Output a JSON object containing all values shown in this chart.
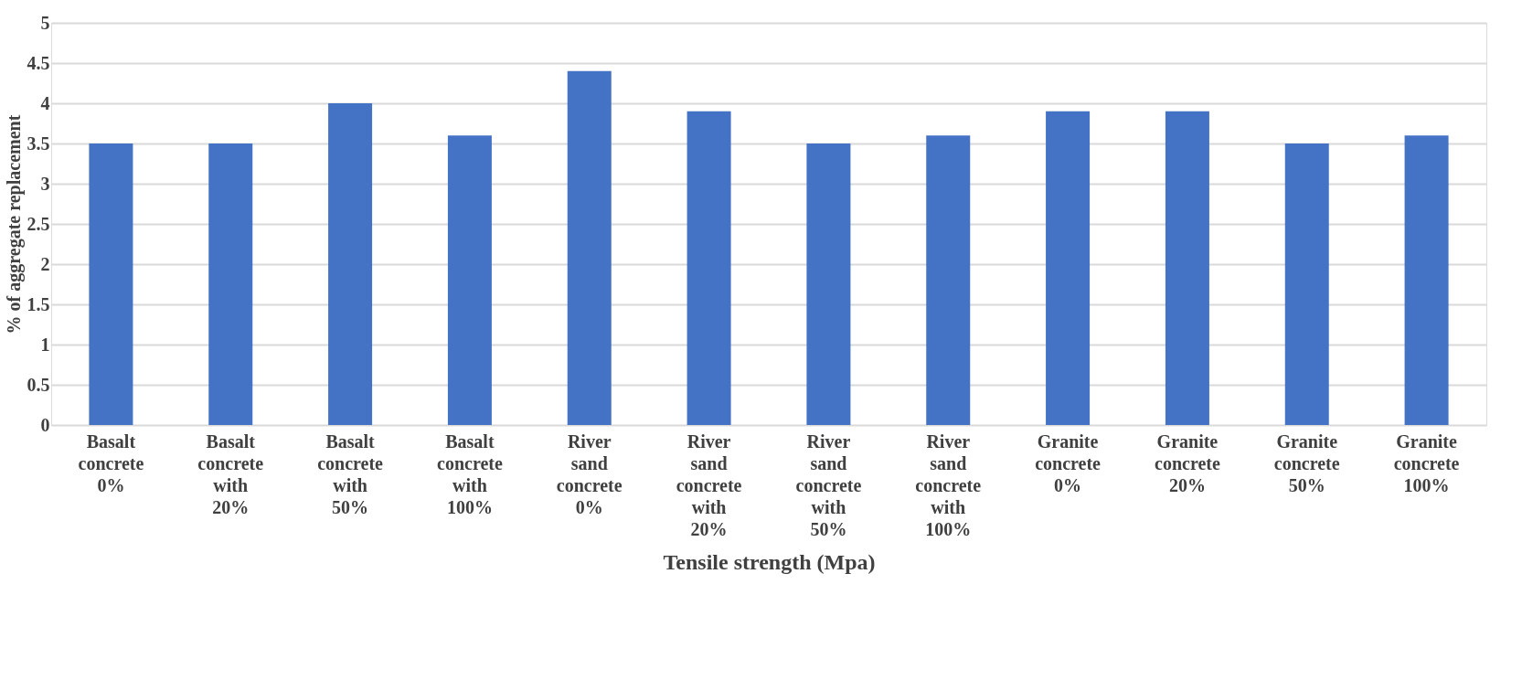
{
  "chart_data": {
    "type": "bar",
    "categories": [
      "Basalt concrete 0%",
      "Basalt concrete with 20%",
      "Basalt concrete with 50%",
      "Basalt concrete with 100%",
      "River sand concrete 0%",
      "River sand concrete with 20%",
      "River sand concrete with 50%",
      "River sand concrete with 100%",
      "Granite concrete 0%",
      "Granite concrete 20%",
      "Granite concrete 50%",
      "Granite concrete 100%"
    ],
    "values": [
      3.5,
      3.5,
      4.0,
      3.6,
      4.4,
      3.9,
      3.5,
      3.6,
      3.9,
      3.9,
      3.5,
      3.6
    ],
    "color": "#4472c4",
    "xlabel": "Tensile strength (Mpa)",
    "ylabel": "% of aggregate replacement",
    "ylim": [
      0,
      5
    ],
    "yticks": [
      0,
      0.5,
      1,
      1.5,
      2,
      2.5,
      3,
      3.5,
      4,
      4.5,
      5
    ],
    "grid": "y"
  }
}
